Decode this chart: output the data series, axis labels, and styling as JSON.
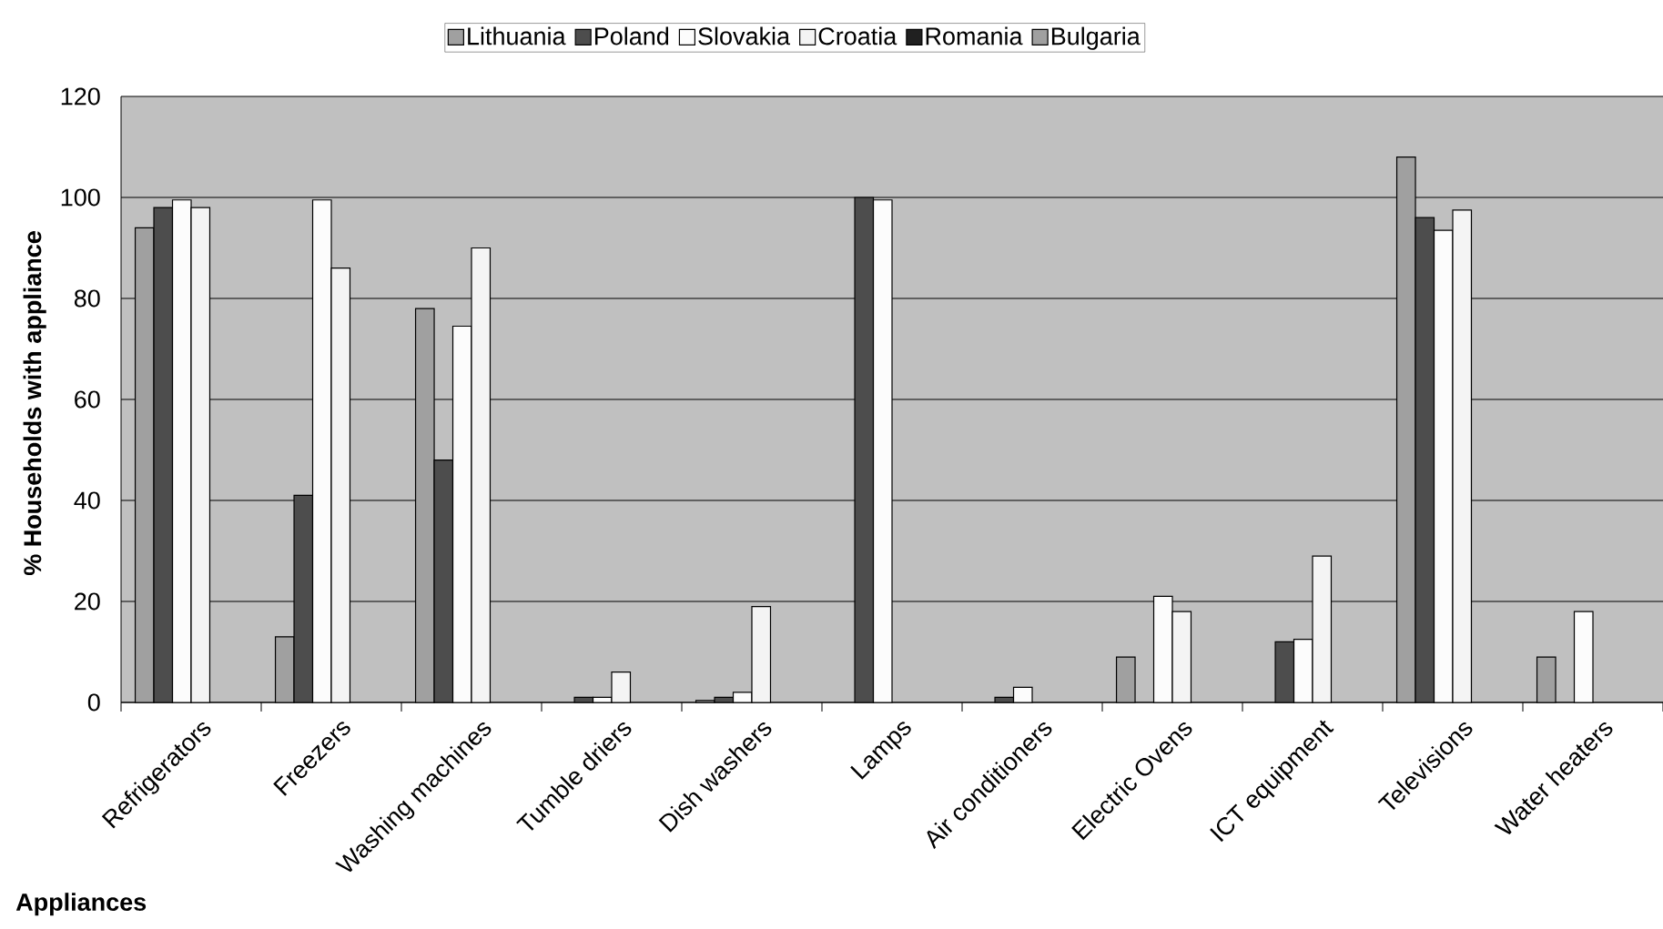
{
  "chart_data": {
    "type": "bar",
    "xlabel": "Appliances",
    "ylabel": "% Households with appliance",
    "categories": [
      "Refrigerators",
      "Freezers",
      "Washing machines",
      "Tumble driers",
      "Dish washers",
      "Lamps",
      "Air conditioners",
      "Electric Ovens",
      "ICT equipment",
      "Televisions",
      "Water heaters"
    ],
    "series": [
      {
        "name": "Lithuania",
        "color": "#a0a0a0",
        "values": [
          94,
          13,
          78,
          null,
          0.4,
          null,
          null,
          9,
          null,
          108,
          9
        ]
      },
      {
        "name": "Poland",
        "color": "#4d4d4d",
        "values": [
          98,
          41,
          48,
          1,
          1,
          100,
          1,
          null,
          12,
          96,
          null
        ]
      },
      {
        "name": "Slovakia",
        "color": "#fcfcfc",
        "values": [
          99.5,
          99.5,
          74.5,
          1,
          2,
          99.5,
          3,
          21,
          12.5,
          93.5,
          18
        ]
      },
      {
        "name": "Croatia",
        "color": "#f4f4f4",
        "values": [
          98,
          86,
          90,
          6,
          19,
          null,
          null,
          18,
          29,
          97.5,
          null
        ]
      },
      {
        "name": "Romania",
        "color": "#202020",
        "values": [
          null,
          null,
          null,
          null,
          null,
          null,
          null,
          null,
          null,
          null,
          null
        ]
      },
      {
        "name": "Bulgaria",
        "color": "#a0a0a0",
        "values": [
          null,
          null,
          null,
          null,
          null,
          null,
          null,
          null,
          null,
          null,
          null
        ]
      }
    ],
    "ylim": [
      0,
      120
    ],
    "yticks": [
      0,
      20,
      40,
      60,
      80,
      100,
      120
    ],
    "grid": "y",
    "legend": "top"
  }
}
